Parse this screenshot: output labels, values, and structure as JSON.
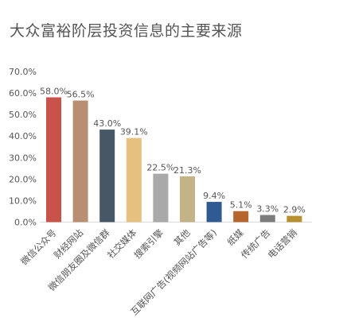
{
  "chart_data": {
    "type": "bar",
    "title": "大众富裕阶层投资信息的主要来源",
    "categories": [
      "微信公众号",
      "财经网站",
      "微信朋友圈及微信群",
      "社交媒体",
      "搜索引擎",
      "其他",
      "互联网广告(视频网站广告等)",
      "纸媒",
      "传统广告",
      "电话营销"
    ],
    "values": [
      58.0,
      56.5,
      43.0,
      39.1,
      22.5,
      21.3,
      9.4,
      5.1,
      3.3,
      2.9
    ],
    "data_labels": [
      "58.0%",
      "56.5%",
      "43.0%",
      "39.1%",
      "22.5%",
      "21.3%",
      "9.4%",
      "5.1%",
      "3.3%",
      "2.9%"
    ],
    "colors": [
      "#c9524a",
      "#b98f73",
      "#475766",
      "#e6c07e",
      "#a9a9a9",
      "#c4b387",
      "#2f5a92",
      "#b5662c",
      "#7d7d7d",
      "#b8902f"
    ],
    "yticks": [
      "0.0%",
      "10.0%",
      "20.0%",
      "30.0%",
      "40.0%",
      "50.0%",
      "60.0%",
      "70.0%"
    ],
    "ylim": [
      0,
      70
    ],
    "xlabel": "",
    "ylabel": "",
    "grid": false,
    "legend": "none"
  }
}
